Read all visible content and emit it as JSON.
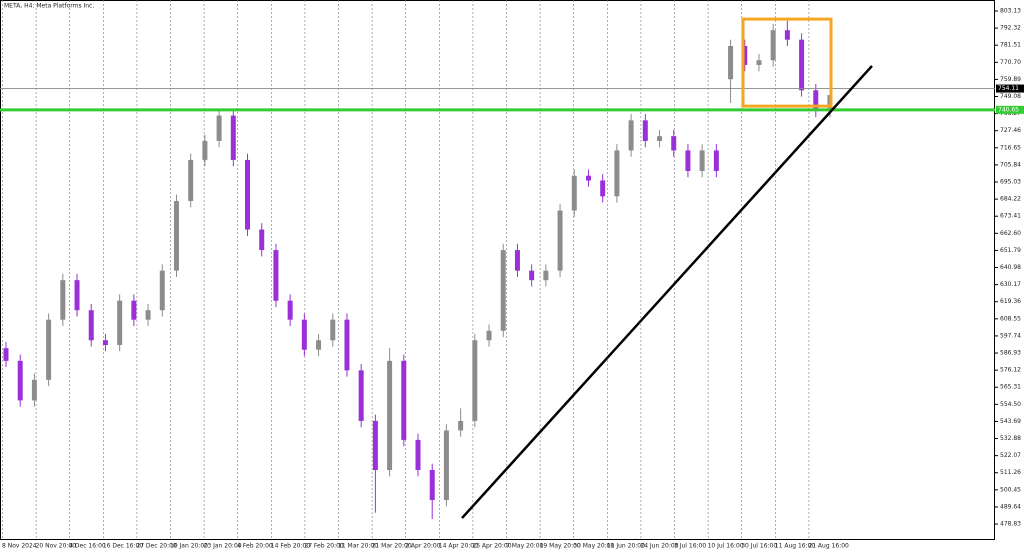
{
  "chart_data": {
    "type": "candlestick",
    "title": "META, H4:  Meta Platforms Inc.",
    "categories": [
      "8 Nov 2024",
      "20 Nov 20:00",
      "4 Dec 16:00",
      "16 Dec 16:00",
      "27 Dec 20:00",
      "10 Jan 20:00",
      "23 Jan 20:00",
      "4 Feb 20:00",
      "14 Feb 20:00",
      "27 Feb 20:00",
      "11 Mar 20:00",
      "21 Mar 20:00",
      "2 Apr 20:00",
      "14 Apr 20:00",
      "25 Apr 20:00",
      "7 May 20:00",
      "19 May 20:00",
      "30 May 20:00",
      "11 Jun 20:00",
      "24 Jun 20:00",
      "3 Jul 16:00",
      "10 Jul 16:00",
      "30 Jul 16:00",
      "11 Aug 16:00",
      "21 Aug 16:00"
    ],
    "open": [
      590,
      582,
      557,
      570,
      608,
      633,
      614,
      595,
      592,
      620,
      608,
      614,
      639,
      683,
      709,
      721,
      737,
      709,
      665,
      652,
      620,
      608,
      589,
      595,
      608,
      576,
      544,
      513,
      582,
      532,
      513,
      494,
      538,
      544,
      595,
      601,
      652,
      639,
      633,
      639,
      677,
      699,
      696,
      686,
      715,
      734,
      721,
      724,
      715,
      702,
      715,
      760,
      781,
      769,
      772,
      791,
      785,
      753,
      740
    ],
    "high": [
      594,
      586,
      574,
      612,
      637,
      637,
      618,
      599,
      624,
      624,
      618,
      643,
      687,
      713,
      725,
      741,
      741,
      713,
      669,
      656,
      624,
      612,
      599,
      612,
      612,
      580,
      548,
      590,
      586,
      536,
      517,
      542,
      552,
      599,
      605,
      656,
      656,
      643,
      643,
      681,
      703,
      703,
      700,
      719,
      738,
      738,
      728,
      728,
      719,
      719,
      719,
      785,
      785,
      776,
      795,
      797,
      789,
      757,
      755
    ],
    "low": [
      578,
      553,
      553,
      566,
      604,
      610,
      591,
      588,
      588,
      604,
      604,
      610,
      635,
      679,
      705,
      717,
      705,
      661,
      648,
      616,
      604,
      585,
      585,
      591,
      572,
      540,
      486,
      509,
      528,
      509,
      482,
      490,
      534,
      540,
      591,
      597,
      635,
      629,
      629,
      635,
      673,
      692,
      682,
      682,
      711,
      717,
      717,
      711,
      698,
      698,
      698,
      745,
      765,
      765,
      768,
      781,
      749,
      736,
      736
    ],
    "close": [
      582,
      557,
      570,
      608,
      633,
      614,
      595,
      592,
      620,
      608,
      614,
      639,
      683,
      709,
      721,
      737,
      709,
      665,
      652,
      620,
      608,
      589,
      595,
      608,
      576,
      544,
      513,
      582,
      532,
      513,
      494,
      538,
      544,
      595,
      601,
      652,
      639,
      633,
      639,
      677,
      699,
      696,
      686,
      715,
      734,
      721,
      724,
      715,
      702,
      715,
      702,
      781,
      769,
      772,
      791,
      785,
      753,
      740,
      750
    ],
    "up_color": "#8c8c8c",
    "down_color": "#9b30d9",
    "ylim": [
      468.75,
      810.08
    ],
    "yticks": [
      803.13,
      792.32,
      781.51,
      {
        "value": 770.7,
        "label": "770.70"
      },
      759.89,
      749.08,
      738.27,
      727.46,
      716.65,
      705.84,
      695.03,
      684.22,
      673.41,
      {
        "value": 662.6,
        "label": "662.60"
      },
      651.79,
      640.98,
      630.17,
      619.36,
      608.55,
      597.74,
      586.93,
      576.12,
      565.31,
      {
        "value": 554.5,
        "label": "554.50"
      },
      543.69,
      532.88,
      522.07,
      511.26,
      500.45,
      489.64,
      478.83
    ],
    "current_price": 754.11,
    "level": {
      "value": 740.65,
      "color": "#33cc33"
    },
    "trendline": {
      "start": 482.6,
      "end": 768.4,
      "color": "#000000"
    },
    "highlight_box": {
      "ylim": [
        743,
        798
      ],
      "color": "#f5a623"
    },
    "grid": true
  }
}
